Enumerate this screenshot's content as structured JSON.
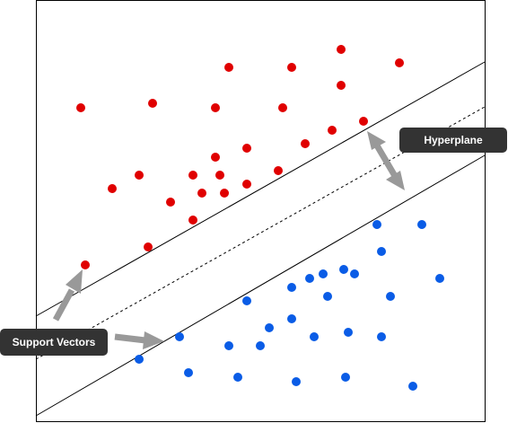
{
  "labels": {
    "hyperplane": "Hyperplane",
    "support_vectors": "Support Vectors"
  },
  "colors": {
    "class_red": "#e00000",
    "class_blue": "#0a5ce6",
    "label_bg": "#333333",
    "arrow": "#999999"
  },
  "icons": [
    "double-arrow-icon",
    "arrow-icon"
  ]
}
